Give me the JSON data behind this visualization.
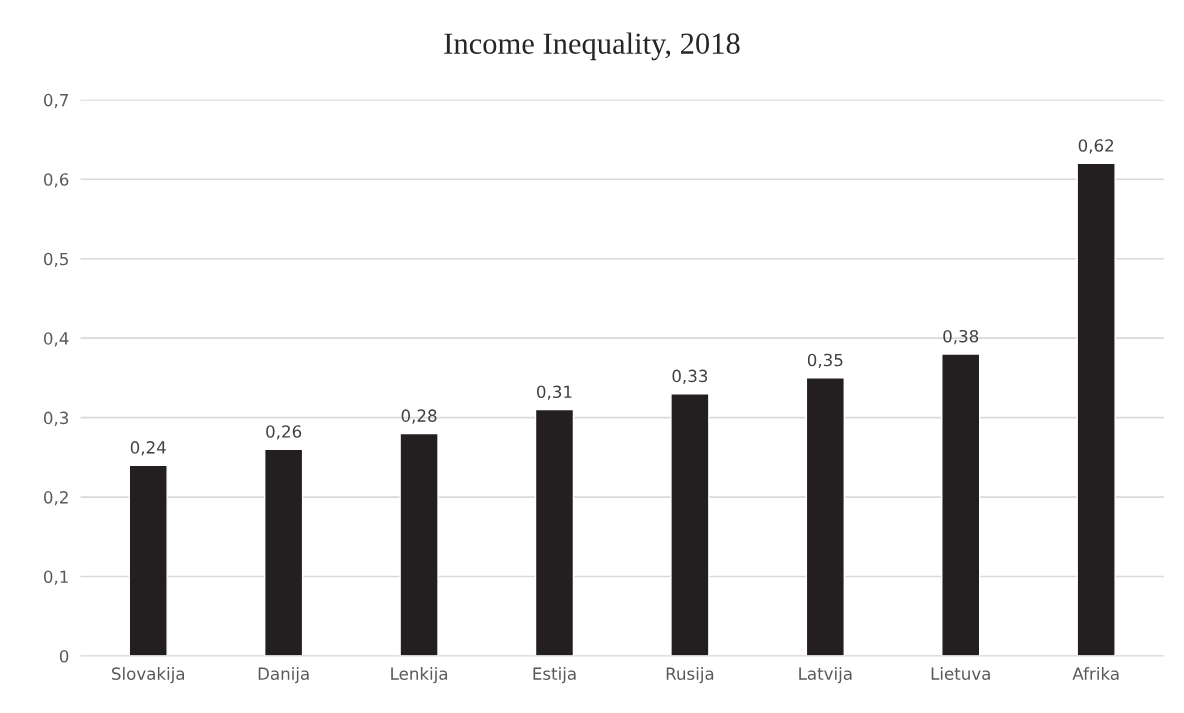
{
  "chart_data": {
    "type": "bar",
    "title": "Income Inequality, 2018",
    "categories": [
      "Slovakija",
      "Danija",
      "Lenkija",
      "Estija",
      "Rusija",
      "Latvija",
      "Lietuva",
      "Afrika"
    ],
    "values": [
      0.24,
      0.26,
      0.28,
      0.31,
      0.33,
      0.35,
      0.38,
      0.62
    ],
    "value_labels": [
      "0,24",
      "0,26",
      "0,28",
      "0,31",
      "0,33",
      "0,35",
      "0,38",
      "0,62"
    ],
    "color": "#231f20",
    "ylim": [
      0,
      0.7
    ],
    "yticks": [
      {
        "value": 0,
        "label": "0"
      },
      {
        "value": 0.1,
        "label": "0,1"
      },
      {
        "value": 0.2,
        "label": "0,2"
      },
      {
        "value": 0.3,
        "label": "0,3"
      },
      {
        "value": 0.4,
        "label": "0,4"
      },
      {
        "value": 0.5,
        "label": "0,5"
      },
      {
        "value": 0.6,
        "label": "0,6"
      },
      {
        "value": 0.7,
        "label": "0,7"
      }
    ],
    "grid": "y"
  }
}
